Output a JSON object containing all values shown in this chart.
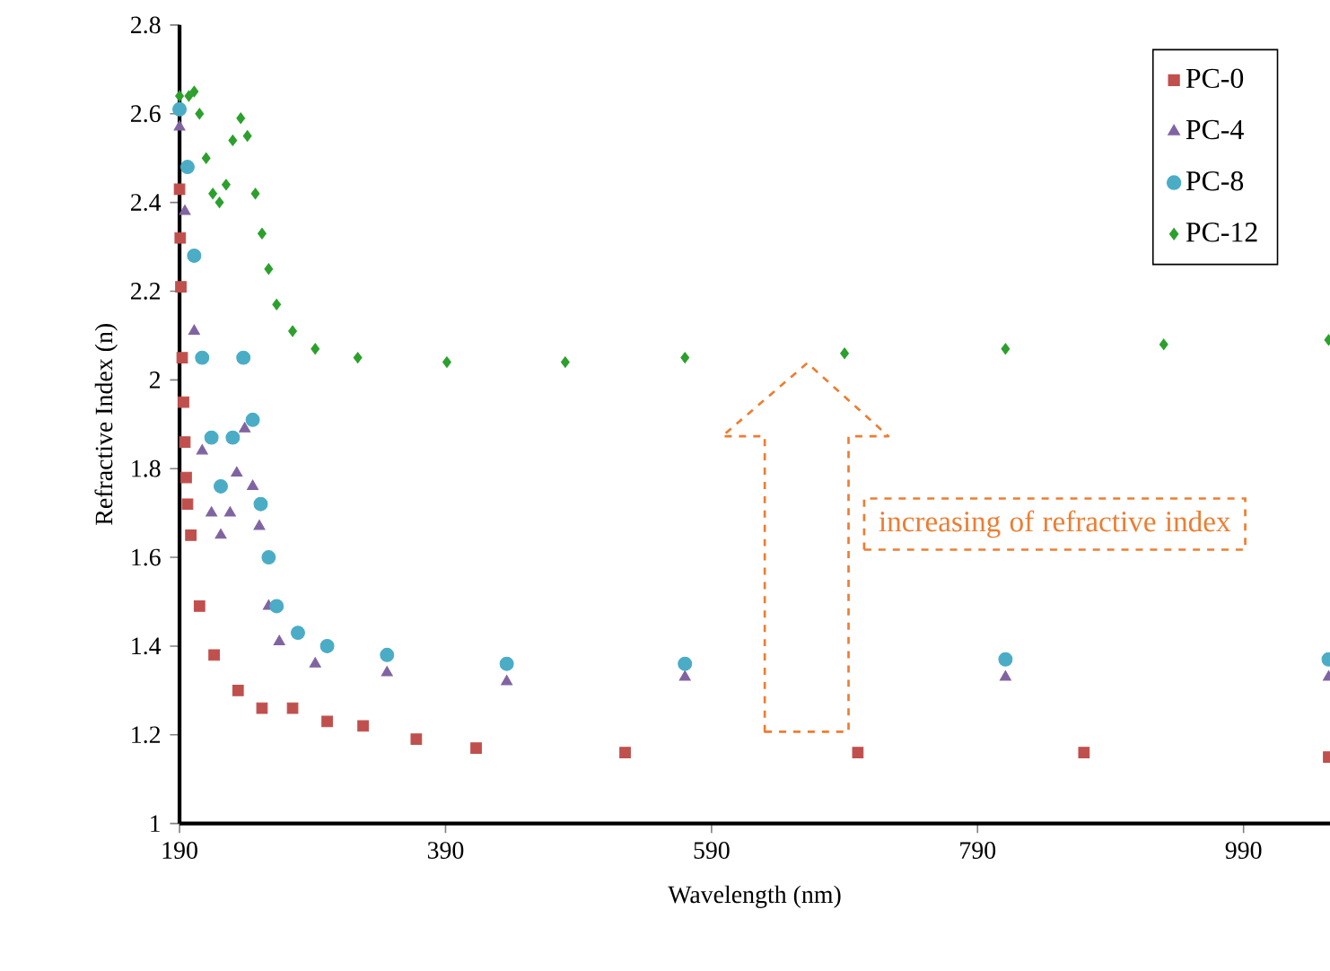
{
  "chart_data": {
    "type": "scatter",
    "xlabel": "Wavelength (nm)",
    "ylabel": "Refractive Index (n)",
    "xlim": [
      190,
      1055
    ],
    "xticks": [
      190,
      390,
      590,
      790,
      990
    ],
    "ylim": [
      1,
      2.8
    ],
    "yticks": [
      1,
      1.2,
      1.4,
      1.6,
      1.8,
      2,
      2.2,
      2.4,
      2.6,
      2.8
    ],
    "legend": "top right",
    "annotations": [
      "increasing of refractive index"
    ],
    "series": [
      {
        "name": "PC-0",
        "color": "#c0504d",
        "marker": "square",
        "x": [
          190,
          190.5,
          191,
          192,
          193,
          194,
          195,
          196,
          198.5,
          205,
          216,
          234,
          252,
          275,
          301,
          328,
          368,
          413,
          525,
          700,
          870,
          1054
        ],
        "values": [
          2.43,
          2.32,
          2.21,
          2.05,
          1.95,
          1.86,
          1.78,
          1.72,
          1.65,
          1.49,
          1.38,
          1.3,
          1.26,
          1.26,
          1.23,
          1.22,
          1.19,
          1.17,
          1.16,
          1.16,
          1.16,
          1.15
        ]
      },
      {
        "name": "PC-4",
        "color": "#8064a2",
        "marker": "triangle",
        "x": [
          190,
          194,
          201,
          207,
          214,
          221,
          228,
          233,
          239,
          245,
          250,
          257,
          265,
          292,
          346,
          436,
          570,
          811,
          1054
        ],
        "values": [
          2.57,
          2.38,
          2.11,
          1.84,
          1.7,
          1.65,
          1.7,
          1.79,
          1.89,
          1.76,
          1.67,
          1.49,
          1.41,
          1.36,
          1.34,
          1.32,
          1.33,
          1.33,
          1.33
        ]
      },
      {
        "name": "PC-8",
        "color": "#4bacc6",
        "marker": "circle",
        "x": [
          190,
          196,
          201,
          207,
          214,
          221,
          230,
          238,
          245,
          251,
          257,
          263,
          279,
          301,
          346,
          436,
          570,
          811,
          1054
        ],
        "values": [
          2.61,
          2.48,
          2.28,
          2.05,
          1.87,
          1.76,
          1.87,
          2.05,
          1.91,
          1.72,
          1.6,
          1.49,
          1.43,
          1.4,
          1.38,
          1.36,
          1.36,
          1.37,
          1.37
        ]
      },
      {
        "name": "PC-12",
        "color": "#2ca02c",
        "marker": "diamond",
        "x": [
          190,
          197,
          201,
          205,
          210,
          215,
          220,
          225,
          230,
          236,
          241,
          247,
          252,
          257,
          263,
          275,
          292,
          324,
          391,
          480,
          570,
          690,
          811,
          930,
          1054
        ],
        "values": [
          2.64,
          2.64,
          2.65,
          2.6,
          2.5,
          2.42,
          2.4,
          2.44,
          2.54,
          2.59,
          2.55,
          2.42,
          2.33,
          2.25,
          2.17,
          2.11,
          2.07,
          2.05,
          2.04,
          2.04,
          2.05,
          2.06,
          2.07,
          2.08,
          2.09
        ]
      }
    ]
  }
}
